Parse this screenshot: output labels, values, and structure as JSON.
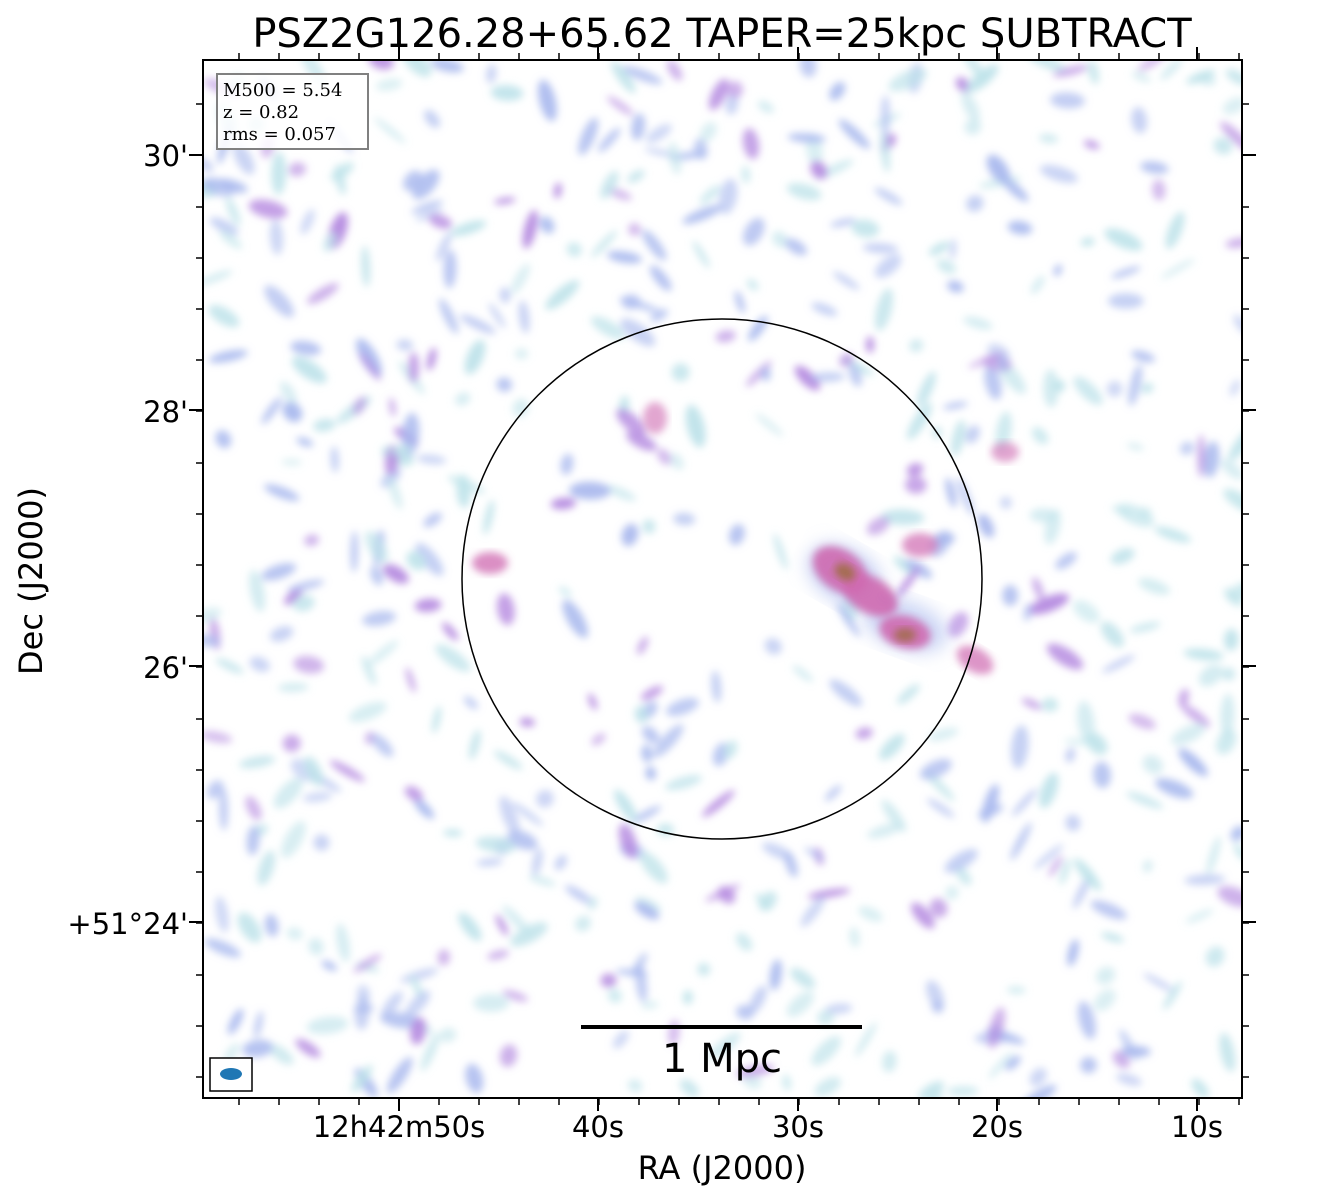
{
  "chart_data": {
    "type": "heatmap",
    "title": "PSZ2G126.28+65.62 TAPER=25kpc SUBTRACT",
    "xlabel": "RA (J2000)",
    "ylabel": "Dec (J2000)",
    "x_ticks": [
      "12h42m50s",
      "40s",
      "30s",
      "20s",
      "10s"
    ],
    "y_ticks": [
      "30'",
      "28'",
      "26'",
      "+51°24'"
    ],
    "info": [
      "M500 = 5.54",
      "z = 0.82",
      "rms = 0.057"
    ],
    "scalebar_label": "1 Mpc",
    "colors": {
      "noise_light": "#bfe3ea",
      "noise_mid": "#a9b9ee",
      "noise_strong": "#b58ae0",
      "emission": "#cf6ab0",
      "emission_peak": "#9a6a3a",
      "beam": "#1f77b4"
    }
  }
}
